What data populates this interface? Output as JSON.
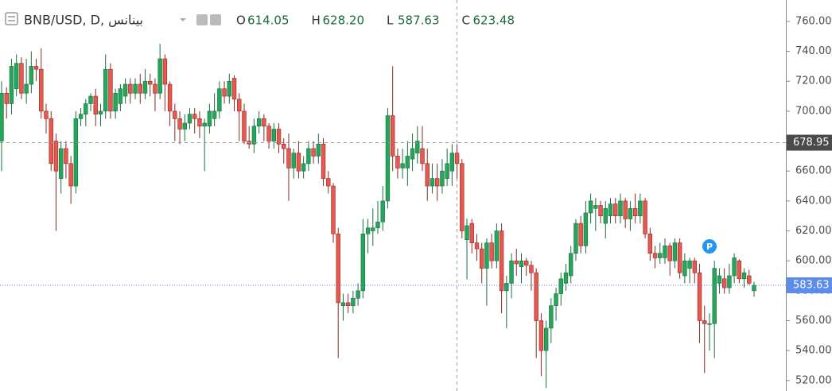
{
  "chart_data": {
    "type": "candlestick",
    "symbol": "BNB/USD, D, بينانس",
    "legend": [
      {
        "name": "O",
        "value": 614.05
      },
      {
        "name": "H",
        "value": 628.2,
        "value_label": "628.20"
      },
      {
        "name": "L",
        "value": 587.63
      },
      {
        "name": "C",
        "value": 623.48
      }
    ],
    "up_color": "#26a65b",
    "down_color": "#e8584f",
    "ylim": [
      513,
      774.3
    ],
    "yticks": [
      {
        "value": 520,
        "label": "520.00"
      },
      {
        "value": 540,
        "label": "540.00"
      },
      {
        "value": 560,
        "label": "560.00"
      },
      {
        "value": 580,
        "label": "580.00"
      },
      {
        "value": 600,
        "label": "600.00"
      },
      {
        "value": 620,
        "label": "620.00"
      },
      {
        "value": 640,
        "label": "640.00"
      },
      {
        "value": 660,
        "label": "660.00"
      },
      {
        "value": 680,
        "label": "680.00"
      },
      {
        "value": 700,
        "label": "700.00"
      },
      {
        "value": 720,
        "label": "720.00"
      },
      {
        "value": 740,
        "label": "740.00"
      },
      {
        "value": 760,
        "label": "760.00"
      }
    ],
    "crosshair_price": 678.95,
    "last_price": 583.63,
    "marker_label": "P",
    "series": [
      {
        "values": [
          [
            680,
            720,
            660,
            712
          ],
          [
            712,
            716,
            695,
            705
          ],
          [
            705,
            735,
            698,
            730
          ],
          [
            715,
            738,
            710,
            732
          ],
          [
            732,
            736,
            708,
            712
          ],
          [
            712,
            735,
            705,
            718
          ],
          [
            718,
            740,
            712,
            730
          ],
          [
            730,
            735,
            720,
            728
          ],
          [
            728,
            742,
            695,
            700
          ],
          [
            700,
            705,
            685,
            695
          ],
          [
            695,
            700,
            660,
            665
          ],
          [
            680,
            685,
            620,
            660
          ],
          [
            655,
            680,
            645,
            675
          ],
          [
            675,
            680,
            655,
            665
          ],
          [
            665,
            670,
            638,
            650
          ],
          [
            650,
            700,
            645,
            695
          ],
          [
            695,
            702,
            690,
            698
          ],
          [
            698,
            708,
            690,
            705
          ],
          [
            705,
            712,
            700,
            710
          ],
          [
            710,
            715,
            690,
            698
          ],
          [
            698,
            705,
            690,
            700
          ],
          [
            700,
            738,
            695,
            728
          ],
          [
            728,
            732,
            695,
            700
          ],
          [
            700,
            715,
            695,
            712
          ],
          [
            705,
            718,
            700,
            715
          ],
          [
            710,
            722,
            705,
            718
          ],
          [
            718,
            722,
            705,
            712
          ],
          [
            712,
            722,
            708,
            718
          ],
          [
            718,
            725,
            705,
            712
          ],
          [
            712,
            728,
            708,
            720
          ],
          [
            720,
            725,
            710,
            718
          ],
          [
            718,
            722,
            700,
            712
          ],
          [
            712,
            745,
            708,
            735
          ],
          [
            735,
            738,
            700,
            718
          ],
          [
            718,
            720,
            690,
            700
          ],
          [
            700,
            705,
            680,
            695
          ],
          [
            695,
            700,
            678,
            688
          ],
          [
            688,
            698,
            680,
            692
          ],
          [
            692,
            702,
            688,
            698
          ],
          [
            698,
            702,
            685,
            695
          ],
          [
            695,
            700,
            682,
            690
          ],
          [
            690,
            695,
            660,
            692
          ],
          [
            690,
            705,
            685,
            700
          ],
          [
            695,
            712,
            690,
            700
          ],
          [
            700,
            720,
            695,
            715
          ],
          [
            715,
            720,
            705,
            710
          ],
          [
            710,
            725,
            705,
            720
          ],
          [
            722,
            724,
            700,
            708
          ],
          [
            708,
            712,
            680,
            700
          ],
          [
            700,
            705,
            678,
            680
          ],
          [
            680,
            690,
            675,
            678
          ],
          [
            678,
            695,
            672,
            690
          ],
          [
            690,
            700,
            685,
            695
          ],
          [
            695,
            698,
            680,
            690
          ],
          [
            690,
            692,
            675,
            680
          ],
          [
            680,
            692,
            675,
            688
          ],
          [
            688,
            692,
            672,
            678
          ],
          [
            678,
            682,
            665,
            675
          ],
          [
            675,
            685,
            640,
            662
          ],
          [
            662,
            675,
            655,
            672
          ],
          [
            672,
            680,
            655,
            660
          ],
          [
            660,
            670,
            655,
            665
          ],
          [
            665,
            680,
            660,
            675
          ],
          [
            675,
            680,
            665,
            670
          ],
          [
            670,
            685,
            665,
            678
          ],
          [
            678,
            682,
            650,
            655
          ],
          [
            655,
            660,
            645,
            650
          ],
          [
            650,
            652,
            612,
            618
          ],
          [
            618,
            622,
            535,
            572
          ],
          [
            570,
            578,
            560,
            572
          ],
          [
            572,
            578,
            565,
            570
          ],
          [
            570,
            580,
            565,
            575
          ],
          [
            575,
            585,
            570,
            580
          ],
          [
            580,
            628,
            575,
            618
          ],
          [
            618,
            628,
            605,
            622
          ],
          [
            620,
            635,
            610,
            622
          ],
          [
            622,
            640,
            618,
            626
          ],
          [
            626,
            650,
            620,
            640
          ],
          [
            640,
            702,
            635,
            697
          ],
          [
            697,
            730,
            660,
            670
          ],
          [
            670,
            675,
            655,
            662
          ],
          [
            662,
            675,
            655,
            665
          ],
          [
            662,
            680,
            650,
            670
          ],
          [
            668,
            685,
            660,
            675
          ],
          [
            672,
            690,
            665,
            680
          ],
          [
            675,
            690,
            660,
            665
          ],
          [
            665,
            675,
            640,
            650
          ],
          [
            650,
            665,
            645,
            655
          ],
          [
            655,
            665,
            640,
            650
          ],
          [
            650,
            668,
            645,
            660
          ],
          [
            655,
            675,
            650,
            665
          ],
          [
            660,
            678,
            650,
            672
          ],
          [
            672,
            678,
            655,
            665
          ],
          [
            665,
            668,
            615,
            620
          ],
          [
            614.05,
            628.2,
            587.63,
            623.48
          ],
          [
            625,
            628,
            605,
            612
          ],
          [
            612,
            618,
            600,
            608
          ],
          [
            608,
            612,
            585,
            595
          ],
          [
            595,
            615,
            570,
            612
          ],
          [
            612,
            618,
            595,
            600
          ],
          [
            600,
            625,
            595,
            620
          ],
          [
            620,
            625,
            565,
            580
          ],
          [
            580,
            590,
            555,
            585
          ],
          [
            585,
            605,
            575,
            600
          ],
          [
            600,
            608,
            590,
            598
          ],
          [
            596,
            605,
            585,
            600
          ],
          [
            600,
            602,
            590,
            597
          ],
          [
            597,
            600,
            580,
            592
          ],
          [
            592,
            595,
            535,
            560
          ],
          [
            560,
            565,
            523,
            540
          ],
          [
            540,
            560,
            515,
            555
          ],
          [
            555,
            575,
            545,
            570
          ],
          [
            570,
            582,
            560,
            578
          ],
          [
            578,
            592,
            570,
            588
          ],
          [
            585,
            598,
            580,
            592
          ],
          [
            590,
            610,
            585,
            605
          ],
          [
            605,
            628,
            600,
            625
          ],
          [
            625,
            630,
            605,
            610
          ],
          [
            610,
            640,
            605,
            632
          ],
          [
            632,
            645,
            625,
            640
          ],
          [
            635,
            642,
            620,
            637
          ],
          [
            637,
            640,
            625,
            630
          ],
          [
            625,
            640,
            615,
            635
          ],
          [
            630,
            642,
            625,
            638
          ],
          [
            638,
            642,
            625,
            630
          ],
          [
            630,
            645,
            625,
            640
          ],
          [
            640,
            642,
            622,
            628
          ],
          [
            628,
            640,
            620,
            635
          ],
          [
            635,
            645,
            625,
            630
          ],
          [
            630,
            645,
            625,
            640
          ],
          [
            640,
            642,
            615,
            618
          ],
          [
            618,
            622,
            600,
            605
          ],
          [
            605,
            610,
            595,
            602
          ],
          [
            602,
            612,
            598,
            605
          ],
          [
            602,
            615,
            598,
            610
          ],
          [
            610,
            612,
            590,
            600
          ],
          [
            600,
            615,
            595,
            612
          ],
          [
            612,
            615,
            588,
            592
          ],
          [
            590,
            605,
            585,
            600
          ],
          [
            595,
            602,
            585,
            600
          ],
          [
            600,
            602,
            585,
            592
          ],
          [
            592,
            598,
            545,
            560
          ],
          [
            560,
            570,
            525,
            558
          ],
          [
            558,
            565,
            540,
            558
          ],
          [
            558,
            600,
            535,
            595
          ],
          [
            585,
            595,
            578,
            590
          ],
          [
            588,
            595,
            578,
            582
          ],
          [
            582,
            598,
            578,
            590
          ],
          [
            590,
            605,
            585,
            602
          ],
          [
            600,
            601,
            585,
            588
          ],
          [
            588,
            595,
            582,
            592
          ],
          [
            590,
            594,
            584,
            585
          ],
          [
            580,
            586,
            576,
            583.63
          ]
        ]
      }
    ]
  }
}
